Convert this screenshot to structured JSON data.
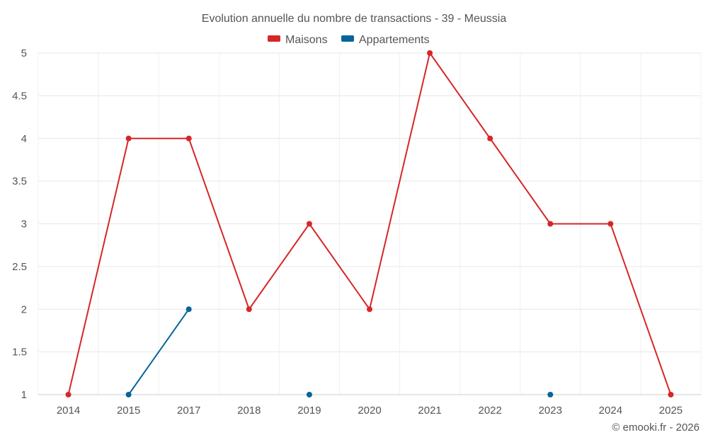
{
  "chart_data": {
    "type": "line",
    "title": "Evolution annuelle du nombre de transactions - 39 - Meussia",
    "categories": [
      "2014",
      "2015",
      "2017",
      "2018",
      "2019",
      "2020",
      "2021",
      "2022",
      "2023",
      "2024",
      "2025"
    ],
    "ylim": [
      1,
      5
    ],
    "yticks": [
      "1",
      "1.5",
      "2",
      "2.5",
      "3",
      "3.5",
      "4",
      "4.5",
      "5"
    ],
    "grid": true,
    "legend_position": "top-center",
    "series": [
      {
        "name": "Maisons",
        "color": "#d62728",
        "values": [
          1,
          4,
          4,
          2,
          3,
          2,
          5,
          4,
          3,
          3,
          1
        ]
      },
      {
        "name": "Appartements",
        "color": "#08659a",
        "values": [
          null,
          1,
          2,
          null,
          1,
          null,
          null,
          null,
          1,
          null,
          null
        ]
      }
    ]
  },
  "credit": "© emooki.fr - 2026"
}
